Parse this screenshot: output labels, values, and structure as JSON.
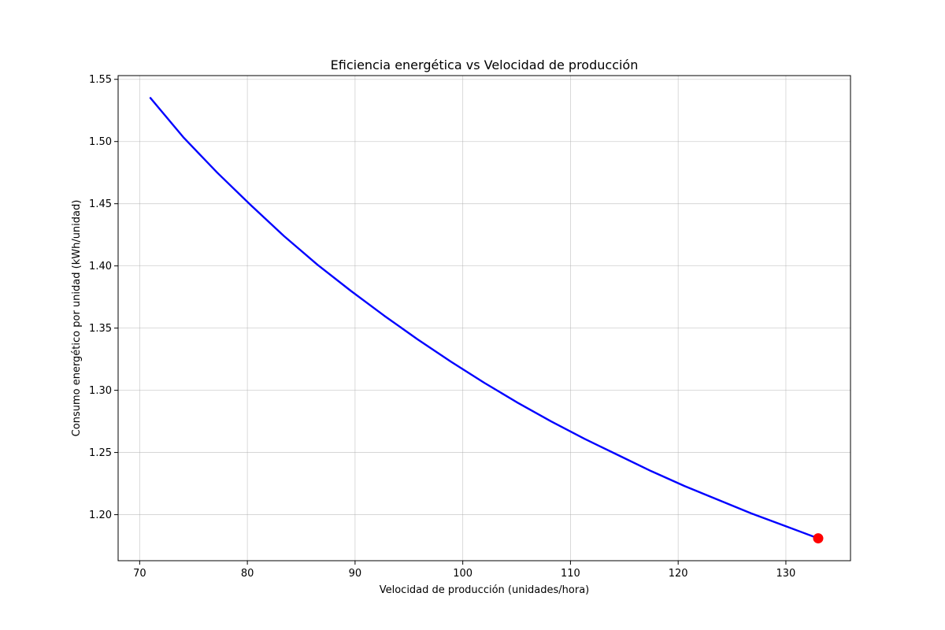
{
  "chart_data": {
    "type": "line",
    "title": "Eficiencia energética vs Velocidad de producción",
    "xlabel": "Velocidad de producción (unidades/hora)",
    "ylabel": "Consumo energético por unidad (kWh/unidad)",
    "xlim": [
      68,
      136
    ],
    "ylim": [
      1.163,
      1.553
    ],
    "xticks": [
      70,
      80,
      90,
      100,
      110,
      120,
      130
    ],
    "yticks": [
      1.2,
      1.25,
      1.3,
      1.35,
      1.4,
      1.45,
      1.5,
      1.55
    ],
    "grid": true,
    "series": [
      {
        "color": "#0000ff",
        "x": [
          71.0,
          74.1,
          77.2,
          80.3,
          83.4,
          86.5,
          89.6,
          92.7,
          95.8,
          98.9,
          102.0,
          105.1,
          108.2,
          111.3,
          114.4,
          117.5,
          120.6,
          123.7,
          126.8,
          129.9,
          133.0
        ],
        "y": [
          1.535,
          1.503,
          1.475,
          1.449,
          1.424,
          1.401,
          1.38,
          1.36,
          1.341,
          1.323,
          1.306,
          1.29,
          1.275,
          1.261,
          1.248,
          1.235,
          1.223,
          1.212,
          1.201,
          1.191,
          1.181
        ]
      }
    ],
    "highlight_point": {
      "x": 133.0,
      "y": 1.181,
      "color": "#ff0000"
    }
  }
}
